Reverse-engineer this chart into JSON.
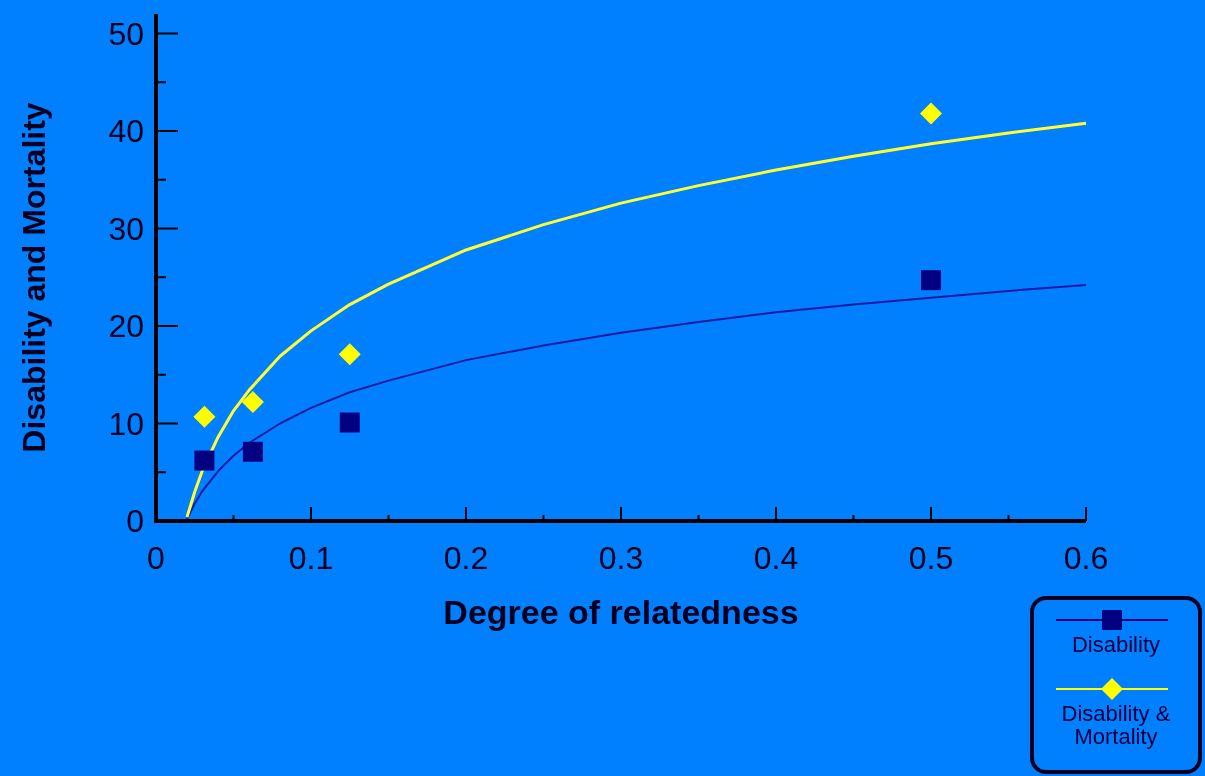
{
  "chart_data": {
    "type": "scatter",
    "xlabel": "Degree of relatedness",
    "ylabel": "Disability and Mortality",
    "xlim": [
      0,
      0.6
    ],
    "xticks": [
      0,
      {
        "value": 0.05,
        "label": null
      },
      0.1,
      {
        "value": 0.15,
        "label": null
      },
      0.2,
      {
        "value": 0.25,
        "label": null
      },
      0.3,
      {
        "value": 0.35,
        "label": null
      },
      0.4,
      {
        "value": 0.45,
        "label": null
      },
      0.5,
      {
        "value": 0.55,
        "label": null
      },
      0.6
    ],
    "ylim": [
      0,
      52
    ],
    "yticks": [
      0,
      {
        "value": 5,
        "label": null
      },
      10,
      {
        "value": 15,
        "label": null
      },
      20,
      {
        "value": 25,
        "label": null
      },
      30,
      {
        "value": 35,
        "label": null
      },
      40,
      {
        "value": 45,
        "label": null
      },
      50
    ],
    "grid": false,
    "legend": "bottom right",
    "series": [
      {
        "type": "line",
        "color": "#1a1aa0",
        "marker": "none",
        "x": [
          0.02,
          0.025,
          0.03,
          0.04,
          0.05,
          0.06,
          0.08,
          0.1,
          0.125,
          0.15,
          0.2,
          0.25,
          0.3,
          0.35,
          0.4,
          0.45,
          0.5,
          0.55,
          0.6
        ],
        "values": [
          0.2,
          1.8,
          3.1,
          5.1,
          6.7,
          8.0,
          10.0,
          11.6,
          13.2,
          14.4,
          16.5,
          18.0,
          19.3,
          20.4,
          21.4,
          22.2,
          22.9,
          23.6,
          24.2
        ]
      },
      {
        "type": "line",
        "color": "#ffff33",
        "marker": "none",
        "x": [
          0.02,
          0.025,
          0.03,
          0.04,
          0.05,
          0.06,
          0.08,
          0.1,
          0.125,
          0.15,
          0.2,
          0.25,
          0.3,
          0.35,
          0.4,
          0.45,
          0.5,
          0.55,
          0.6
        ],
        "values": [
          0.4,
          3.0,
          5.2,
          8.6,
          11.3,
          13.4,
          16.9,
          19.5,
          22.2,
          24.3,
          27.8,
          30.4,
          32.6,
          34.4,
          36.0,
          37.4,
          38.7,
          39.8,
          40.8
        ]
      },
      {
        "name": "Disability",
        "color": "#000080",
        "marker": "square",
        "x": [
          0.03125,
          0.0625,
          0.125,
          0.5
        ],
        "values": [
          6.2,
          7.1,
          10.1,
          24.7
        ]
      },
      {
        "name": "Disability & Mortality",
        "color": "#ffff00",
        "marker": "diamond",
        "x": [
          0.03125,
          0.0625,
          0.125,
          0.5
        ],
        "values": [
          10.7,
          12.2,
          17.1,
          41.8
        ]
      }
    ]
  }
}
